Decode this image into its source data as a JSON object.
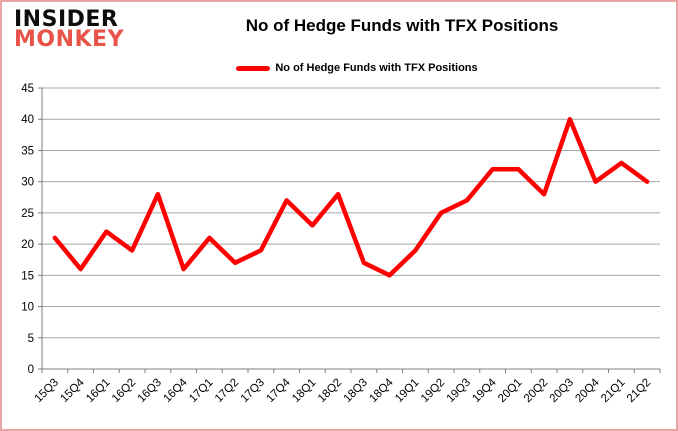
{
  "branding": {
    "logo_line1": "INSIDER",
    "logo_line2": "MONKEY"
  },
  "header": {
    "title": "No of Hedge Funds with TFX Positions"
  },
  "legend": {
    "label": "No of Hedge Funds with TFX Positions",
    "swatch_color": "#ff0000"
  },
  "colors": {
    "series": "#ff0000",
    "gridline": "#a6a6a6",
    "axis": "#7f7f7f",
    "text": "#000000",
    "frame_border": "#e8a5a5",
    "logo_accent": "#e8544a"
  },
  "chart_data": {
    "type": "line",
    "title": "No of Hedge Funds with TFX Positions",
    "categories": [
      "15Q3",
      "15Q4",
      "16Q1",
      "16Q2",
      "16Q3",
      "16Q4",
      "17Q1",
      "17Q2",
      "17Q3",
      "17Q4",
      "18Q1",
      "18Q2",
      "18Q3",
      "18Q4",
      "19Q1",
      "19Q2",
      "19Q3",
      "19Q4",
      "20Q1",
      "20Q2",
      "20Q3",
      "20Q4",
      "21Q1",
      "21Q2"
    ],
    "series": [
      {
        "name": "No of Hedge Funds with TFX Positions",
        "color": "#ff0000",
        "values": [
          21,
          16,
          22,
          19,
          28,
          16,
          21,
          17,
          19,
          27,
          23,
          28,
          17,
          15,
          19,
          25,
          27,
          32,
          32,
          28,
          40,
          30,
          33,
          30
        ]
      }
    ],
    "xlabel": "",
    "ylabel": "",
    "ylim": [
      0,
      45
    ],
    "ytick_step": 5,
    "yticks": [
      0,
      5,
      10,
      15,
      20,
      25,
      30,
      35,
      40,
      45
    ],
    "grid": true,
    "legend_position": "top"
  }
}
